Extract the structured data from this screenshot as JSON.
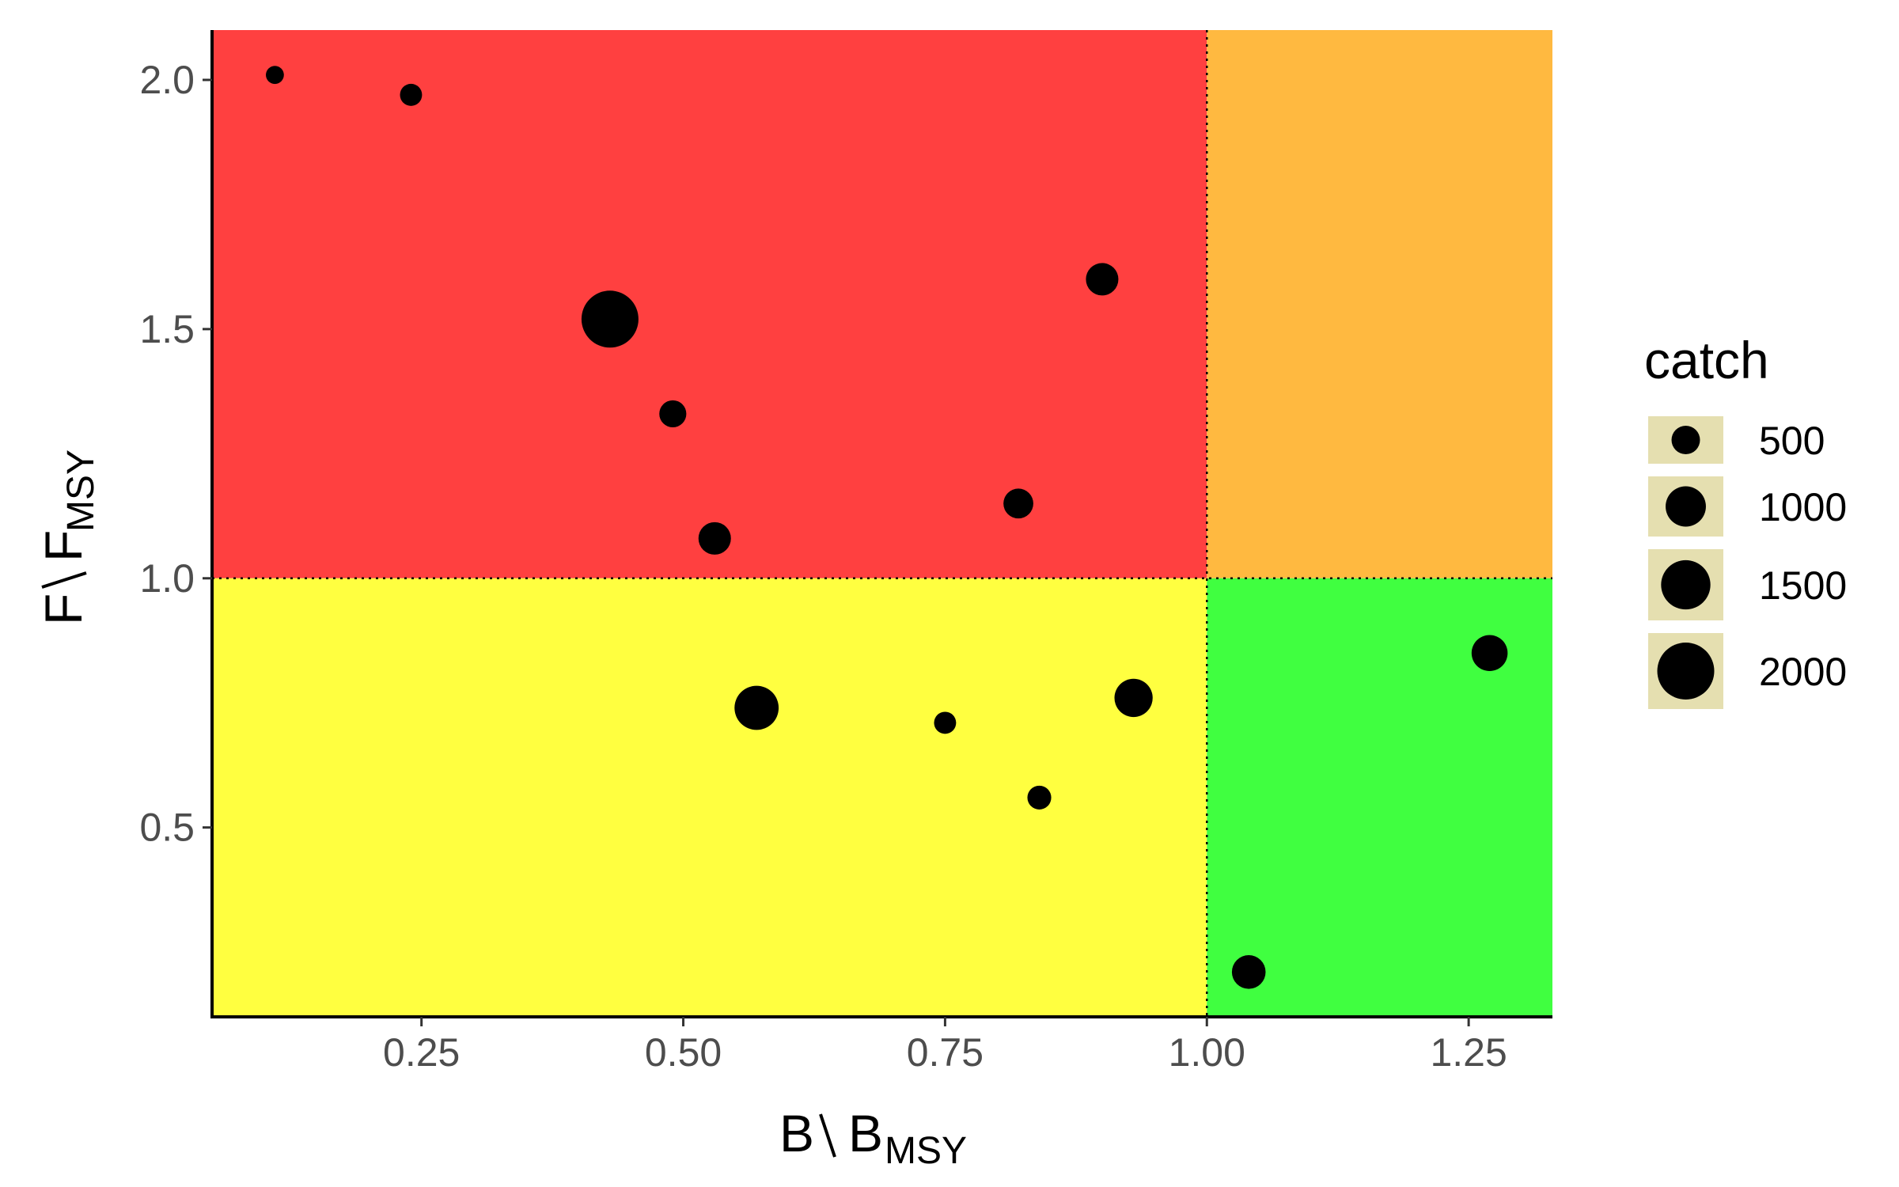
{
  "chart_data": {
    "type": "scatter",
    "title": "",
    "xlabel": {
      "main": "B",
      "sub": "MSY"
    },
    "ylabel": {
      "main": "F",
      "sub": "MSY"
    },
    "xlim": [
      0.05,
      1.33
    ],
    "ylim": [
      0.12,
      2.1
    ],
    "xticks": [
      0.25,
      0.5,
      0.75,
      1.0
    ],
    "xtick_labels": [
      "0.25",
      "0.50",
      "0.75",
      "1.00"
    ],
    "xticks_extra": [
      1.25
    ],
    "xtick_labels_extra": [
      "1.25"
    ],
    "yticks": [
      0.5,
      1.0,
      1.5,
      2.0
    ],
    "ytick_labels": [
      "0.5",
      "1.0",
      "1.5",
      "2.0"
    ],
    "reference_lines": {
      "x": 1.0,
      "y": 1.0,
      "style": "dotted"
    },
    "zones": [
      {
        "name": "overfished-overfishing",
        "color": "#FF4040",
        "x": [
          0.05,
          1.0
        ],
        "y": [
          1.0,
          2.1
        ]
      },
      {
        "name": "healthy-overfishing",
        "color": "#FFB940",
        "x": [
          1.0,
          1.33
        ],
        "y": [
          1.0,
          2.1
        ]
      },
      {
        "name": "overfished-no-overfishing",
        "color": "#FFFF40",
        "x": [
          0.05,
          1.0
        ],
        "y": [
          0.12,
          1.0
        ]
      },
      {
        "name": "healthy",
        "color": "#40FF40",
        "x": [
          1.0,
          1.33
        ],
        "y": [
          0.12,
          1.0
        ]
      }
    ],
    "points": [
      {
        "x": 0.11,
        "y": 2.01,
        "catch": 200
      },
      {
        "x": 0.24,
        "y": 1.97,
        "catch": 300
      },
      {
        "x": 0.43,
        "y": 1.52,
        "catch": 2000
      },
      {
        "x": 0.49,
        "y": 1.33,
        "catch": 450
      },
      {
        "x": 0.53,
        "y": 1.08,
        "catch": 650
      },
      {
        "x": 0.82,
        "y": 1.15,
        "catch": 550
      },
      {
        "x": 0.9,
        "y": 1.6,
        "catch": 650
      },
      {
        "x": 0.57,
        "y": 0.74,
        "catch": 1200
      },
      {
        "x": 0.75,
        "y": 0.71,
        "catch": 300
      },
      {
        "x": 0.84,
        "y": 0.56,
        "catch": 350
      },
      {
        "x": 0.93,
        "y": 0.76,
        "catch": 900
      },
      {
        "x": 1.04,
        "y": 0.21,
        "catch": 700
      },
      {
        "x": 1.27,
        "y": 0.85,
        "catch": 800
      }
    ],
    "size_scale": {
      "max_value": 2000,
      "max_radius": 36
    },
    "legend": {
      "title": "catch",
      "placement": "right",
      "key_background": "#E5DFB0",
      "entries": [
        {
          "label": "500",
          "value": 500
        },
        {
          "label": "1000",
          "value": 1000
        },
        {
          "label": "1500",
          "value": 1500
        },
        {
          "label": "2000",
          "value": 2000
        }
      ]
    },
    "colors": {
      "point": "#000000",
      "axis": "#000000",
      "tick_text": "#4d4d4d"
    }
  }
}
